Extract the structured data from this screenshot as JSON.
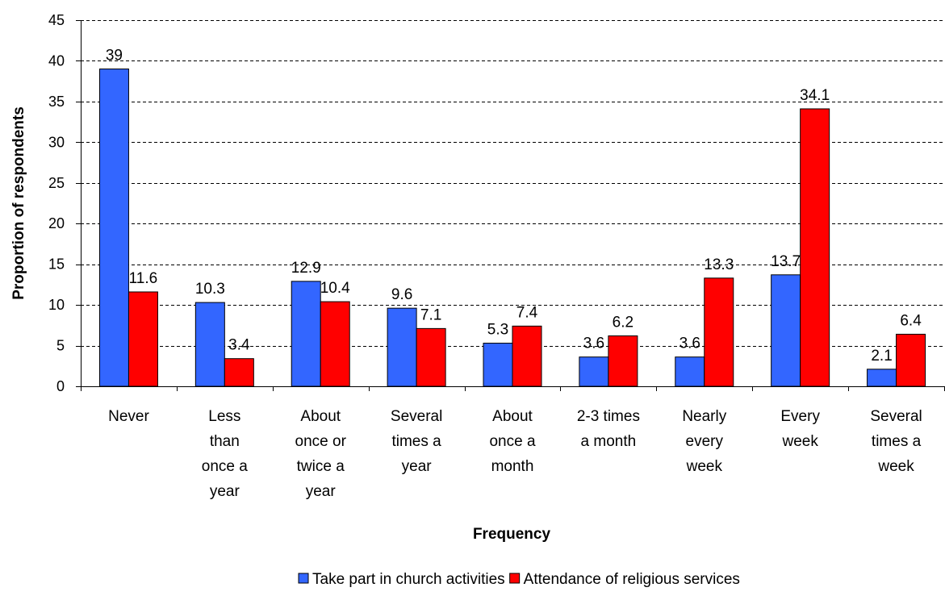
{
  "chart_data": {
    "type": "bar",
    "title": "",
    "xlabel": "Frequency",
    "ylabel": "Proportion of respondents",
    "ylim": [
      0,
      45
    ],
    "yticks": [
      0,
      5,
      10,
      15,
      20,
      25,
      30,
      35,
      40,
      45
    ],
    "grid": true,
    "legend_position": "bottom",
    "categories": [
      [
        "Never"
      ],
      [
        "Less",
        "than",
        "once a",
        "year"
      ],
      [
        "About",
        "once or",
        "twice a",
        "year"
      ],
      [
        "Several",
        "times a",
        "year"
      ],
      [
        "About",
        "once a",
        "month"
      ],
      [
        "2-3 times",
        "a month"
      ],
      [
        "Nearly",
        "every",
        "week"
      ],
      [
        "Every",
        "week"
      ],
      [
        "Several",
        "times a",
        "week"
      ]
    ],
    "series": [
      {
        "name": "Take part in church activities",
        "color": "#3366FF",
        "values": [
          39,
          10.3,
          12.9,
          9.6,
          5.3,
          3.6,
          3.6,
          13.7,
          2.1
        ],
        "labels": [
          "39",
          "10.3",
          "12.9",
          "9.6",
          "5.3",
          "3.6",
          "3.6",
          "13.7",
          "2.1"
        ]
      },
      {
        "name": "Attendance of religious services",
        "color": "#FF0000",
        "values": [
          11.6,
          3.4,
          10.4,
          7.1,
          7.4,
          6.2,
          13.3,
          34.1,
          6.4
        ],
        "labels": [
          "11.6",
          "3.4",
          "10.4",
          "7.1",
          "7.4",
          "6.2",
          "13.3",
          "34.1",
          "6.4"
        ]
      }
    ]
  }
}
